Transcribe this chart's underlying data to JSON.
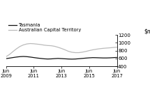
{
  "title": "",
  "ylim": [
    400,
    1200
  ],
  "yticks": [
    400,
    600,
    800,
    1000,
    1200
  ],
  "xtick_labels": [
    "Jun\n2009",
    "Jun\n2011",
    "Jun\n2013",
    "Jun\n2015",
    "Jun\n2017"
  ],
  "xtick_positions": [
    0,
    8,
    16,
    24,
    32
  ],
  "tasmania": [
    595,
    608,
    622,
    635,
    645,
    650,
    645,
    635,
    622,
    610,
    600,
    590,
    585,
    588,
    595,
    600,
    595,
    590,
    585,
    582,
    585,
    592,
    600,
    608,
    615,
    620,
    618,
    615,
    612,
    612,
    615,
    620,
    625
  ],
  "act": [
    645,
    700,
    775,
    845,
    905,
    945,
    970,
    980,
    975,
    965,
    955,
    940,
    930,
    925,
    910,
    885,
    855,
    820,
    782,
    758,
    748,
    748,
    760,
    778,
    800,
    820,
    835,
    848,
    858,
    865,
    872,
    880,
    888
  ],
  "tasmania_color": "#111111",
  "act_color": "#bbbbbb",
  "tasmania_label": "Tasmania",
  "act_label": "Australian Capital Territory",
  "background_color": "#ffffff",
  "n_points": 33
}
